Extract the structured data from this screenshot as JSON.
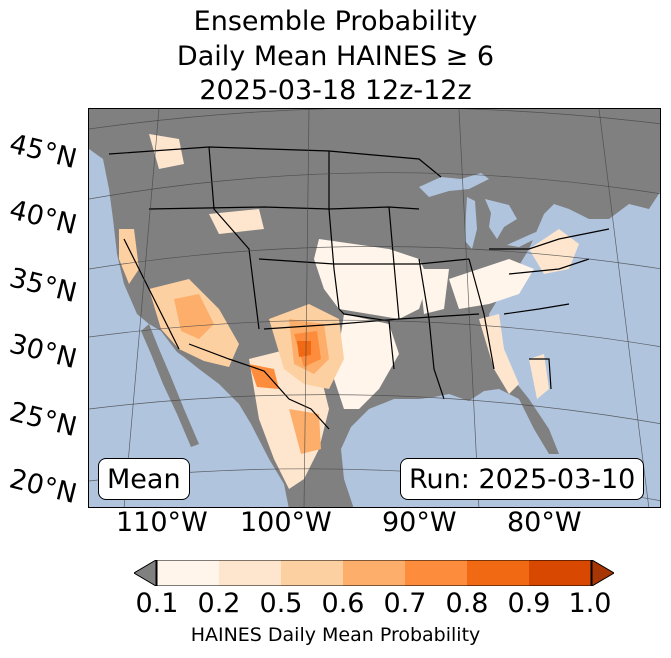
{
  "title": {
    "line1": "Ensemble Probability",
    "line2": "Daily Mean HAINES ≥ 6",
    "line3": "2025-03-18 12z-12z"
  },
  "lat_labels": [
    "45°N",
    "40°N",
    "35°N",
    "30°N",
    "25°N",
    "20°N"
  ],
  "lon_labels": [
    "110°W",
    "100°W",
    "90°W",
    "80°W"
  ],
  "mean_label": "Mean",
  "run_label": "Run: 2025-03-10",
  "colorbar": {
    "label": "HAINES Daily Mean Probability",
    "ticks": [
      "0.1",
      "0.2",
      "0.5",
      "0.6",
      "0.7",
      "0.8",
      "0.9",
      "1.0"
    ],
    "colors": [
      "#fff5eb",
      "#fee6ce",
      "#fdd0a2",
      "#fdae6b",
      "#fd8d3c",
      "#f16913",
      "#d94801",
      "#a63603"
    ],
    "under_color": "#808080"
  },
  "colors": {
    "ocean": "#b0c4de",
    "land_masked": "#808080",
    "borders": "#000000"
  }
}
